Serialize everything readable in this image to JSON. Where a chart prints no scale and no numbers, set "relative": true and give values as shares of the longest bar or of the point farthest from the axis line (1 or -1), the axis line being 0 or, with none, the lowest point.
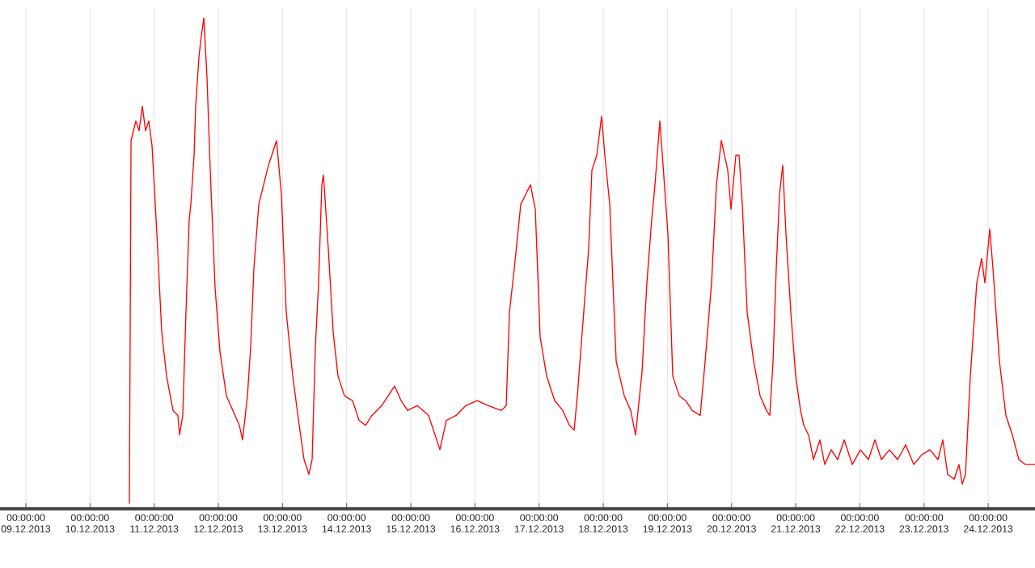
{
  "chart_data": {
    "type": "line",
    "relative": true,
    "grid": "x",
    "xlim": [
      "2013-12-08T14:19",
      "2013-12-24T17:31"
    ],
    "xticks": [
      {
        "value": "2013-12-09T00:00",
        "label": "00:00:00 09.12.2013"
      },
      {
        "value": "2013-12-10T00:00",
        "label": "00:00:00 10.12.2013"
      },
      {
        "value": "2013-12-11T00:00",
        "label": "00:00:00 11.12.2013"
      },
      {
        "value": "2013-12-12T00:00",
        "label": "00:00:00 12.12.2013"
      },
      {
        "value": "2013-12-13T00:00",
        "label": "00:00:00 13.12.2013"
      },
      {
        "value": "2013-12-14T00:00",
        "label": "00:00:00 14.12.2013"
      },
      {
        "value": "2013-12-15T00:00",
        "label": "00:00:00 15.12.2013"
      },
      {
        "value": "2013-12-16T00:00",
        "label": "00:00:00 16.12.2013"
      },
      {
        "value": "2013-12-17T00:00",
        "label": "00:00:00 17.12.2013"
      },
      {
        "value": "2013-12-18T00:00",
        "label": "00:00:00 18.12.2013"
      },
      {
        "value": "2013-12-19T00:00",
        "label": "00:00:00 19.12.2013"
      },
      {
        "value": "2013-12-20T00:00",
        "label": "00:00:00 20.12.2013"
      },
      {
        "value": "2013-12-21T00:00",
        "label": "00:00:00 21.12.2013"
      },
      {
        "value": "2013-12-22T00:00",
        "label": "00:00:00 22.12.2013"
      },
      {
        "value": "2013-12-23T00:00",
        "label": "00:00:00 23.12.2013"
      },
      {
        "value": "2013-12-24T00:00",
        "label": "00:00:00 24.12.2013"
      }
    ],
    "series": [
      {
        "color": "#ff0000",
        "line_style": "solid",
        "x": [
          "2013-12-10T14:43",
          "2013-12-10T15:20",
          "2013-12-10T17:08",
          "2013-12-10T18:21",
          "2013-12-10T19:34",
          "2013-12-10T20:46",
          "2013-12-10T21:59",
          "2013-12-10T23:11",
          "2013-12-11T01:00",
          "2013-12-11T02:49",
          "2013-12-11T04:38",
          "2013-12-11T07:03",
          "2013-12-11T08:52",
          "2013-12-11T09:29",
          "2013-12-11T10:41",
          "2013-12-11T11:53",
          "2013-12-11T13:06",
          "2013-12-11T13:42",
          "2013-12-11T14:55",
          "2013-12-11T15:31",
          "2013-12-11T16:44",
          "2013-12-11T17:20",
          "2013-12-11T18:33",
          "2013-12-11T19:45",
          "2013-12-11T20:58",
          "2013-12-11T22:47",
          "2013-12-12T00:36",
          "2013-12-12T03:01",
          "2013-12-12T05:26",
          "2013-12-12T07:51",
          "2013-12-12T09:04",
          "2013-12-12T10:53",
          "2013-12-12T12:06",
          "2013-12-12T13:18",
          "2013-12-12T15:07",
          "2013-12-12T16:56",
          "2013-12-12T18:45",
          "2013-12-12T19:58",
          "2013-12-12T21:47",
          "2013-12-12T23:35",
          "2013-12-13T01:24",
          "2013-12-13T03:50",
          "2013-12-13T06:15",
          "2013-12-13T08:04",
          "2013-12-13T09:53",
          "2013-12-13T11:05",
          "2013-12-13T12:18",
          "2013-12-13T13:30",
          "2013-12-13T14:43",
          "2013-12-13T15:19",
          "2013-12-13T17:08",
          "2013-12-13T18:57",
          "2013-12-13T20:46",
          "2013-12-13T23:11",
          "2013-12-14T02:13",
          "2013-12-14T04:38",
          "2013-12-14T07:03",
          "2013-12-14T09:28",
          "2013-12-14T13:06",
          "2013-12-14T15:31",
          "2013-12-14T17:56",
          "2013-12-14T20:22",
          "2013-12-14T22:47",
          "2013-12-15T02:25",
          "2013-12-15T06:39",
          "2013-12-15T10:53",
          "2013-12-15T13:18",
          "2013-12-15T16:56",
          "2013-12-15T20:34",
          "2013-12-16T00:48",
          "2013-12-16T05:02",
          "2013-12-16T09:52",
          "2013-12-16T11:41",
          "2013-12-16T12:54",
          "2013-12-16T14:43",
          "2013-12-16T17:08",
          "2013-12-16T18:57",
          "2013-12-16T20:46",
          "2013-12-16T22:35",
          "2013-12-17T00:23",
          "2013-12-17T02:49",
          "2013-12-17T05:50",
          "2013-12-17T08:52",
          "2013-12-17T11:17",
          "2013-12-17T13:06",
          "2013-12-17T14:18",
          "2013-12-17T16:07",
          "2013-12-17T18:32",
          "2013-12-17T19:45",
          "2013-12-17T21:34",
          "2013-12-17T23:23",
          "2013-12-18T00:35",
          "2013-12-18T02:25",
          "2013-12-18T04:50",
          "2013-12-18T07:51",
          "2013-12-18T10:16",
          "2013-12-18T12:05",
          "2013-12-18T14:31",
          "2013-12-18T16:19",
          "2013-12-18T18:08",
          "2013-12-18T19:21",
          "2013-12-18T21:10",
          "2013-12-18T22:22",
          "2013-12-19T00:11",
          "2013-12-19T02:00",
          "2013-12-19T04:25",
          "2013-12-19T06:50",
          "2013-12-19T09:16",
          "2013-12-19T12:17",
          "2013-12-19T14:06",
          "2013-12-19T16:31",
          "2013-12-19T18:20",
          "2013-12-19T20:09",
          "2013-12-19T22:34",
          "2013-12-19T23:47",
          "2013-12-20T01:36",
          "2013-12-20T02:48",
          "2013-12-20T04:01",
          "2013-12-20T05:50",
          "2013-12-20T08:15",
          "2013-12-20T10:40",
          "2013-12-20T13:05",
          "2013-12-20T14:18",
          "2013-12-20T15:31",
          "2013-12-20T16:43",
          "2013-12-20T17:56",
          "2013-12-20T19:08",
          "2013-12-20T20:21",
          "2013-12-20T22:10",
          "2013-12-20T23:59",
          "2013-12-21T01:48",
          "2013-12-21T03:00",
          "2013-12-21T04:49",
          "2013-12-21T06:38",
          "2013-12-21T09:03",
          "2013-12-21T10:52",
          "2013-12-21T13:17",
          "2013-12-21T15:43",
          "2013-12-21T18:08",
          "2013-12-21T21:09",
          "2013-12-22T00:11",
          "2013-12-22T03:12",
          "2013-12-22T05:38",
          "2013-12-22T08:03",
          "2013-12-22T11:04",
          "2013-12-22T14:06",
          "2013-12-22T17:07",
          "2013-12-22T20:09",
          "2013-12-22T23:10",
          "2013-12-23T02:12",
          "2013-12-23T05:13",
          "2013-12-23T07:02",
          "2013-12-23T08:51",
          "2013-12-23T11:16",
          "2013-12-23T13:05",
          "2013-12-23T14:18",
          "2013-12-23T15:30",
          "2013-12-23T17:19",
          "2013-12-23T19:44",
          "2013-12-23T21:33",
          "2013-12-23T22:46",
          "2013-12-24T00:35",
          "2013-12-24T01:47",
          "2013-12-24T04:13",
          "2013-12-24T06:38",
          "2013-12-24T09:03",
          "2013-12-24T11:28",
          "2013-12-24T13:53",
          "2013-12-24T17:31"
        ],
        "values": [
          0.01,
          0.75,
          0.79,
          0.77,
          0.82,
          0.77,
          0.79,
          0.74,
          0.56,
          0.36,
          0.27,
          0.2,
          0.19,
          0.15,
          0.19,
          0.4,
          0.59,
          0.62,
          0.72,
          0.82,
          0.92,
          0.95,
          1.0,
          0.88,
          0.69,
          0.45,
          0.32,
          0.23,
          0.2,
          0.17,
          0.14,
          0.23,
          0.33,
          0.49,
          0.62,
          0.66,
          0.7,
          0.72,
          0.75,
          0.64,
          0.4,
          0.27,
          0.17,
          0.1,
          0.07,
          0.1,
          0.33,
          0.46,
          0.66,
          0.68,
          0.53,
          0.36,
          0.27,
          0.23,
          0.22,
          0.18,
          0.17,
          0.19,
          0.21,
          0.23,
          0.25,
          0.22,
          0.2,
          0.21,
          0.19,
          0.12,
          0.18,
          0.19,
          0.21,
          0.22,
          0.21,
          0.2,
          0.21,
          0.4,
          0.49,
          0.62,
          0.64,
          0.66,
          0.61,
          0.35,
          0.27,
          0.22,
          0.2,
          0.17,
          0.16,
          0.23,
          0.36,
          0.53,
          0.69,
          0.72,
          0.8,
          0.72,
          0.62,
          0.3,
          0.23,
          0.2,
          0.15,
          0.28,
          0.46,
          0.59,
          0.66,
          0.79,
          0.7,
          0.56,
          0.27,
          0.23,
          0.22,
          0.2,
          0.19,
          0.3,
          0.46,
          0.66,
          0.75,
          0.69,
          0.61,
          0.72,
          0.72,
          0.62,
          0.4,
          0.3,
          0.23,
          0.2,
          0.19,
          0.3,
          0.49,
          0.64,
          0.7,
          0.56,
          0.4,
          0.27,
          0.2,
          0.17,
          0.15,
          0.1,
          0.14,
          0.09,
          0.12,
          0.1,
          0.14,
          0.09,
          0.12,
          0.1,
          0.14,
          0.1,
          0.12,
          0.1,
          0.13,
          0.09,
          0.11,
          0.12,
          0.1,
          0.14,
          0.07,
          0.06,
          0.09,
          0.05,
          0.07,
          0.27,
          0.46,
          0.51,
          0.46,
          0.57,
          0.49,
          0.3,
          0.19,
          0.15,
          0.1,
          0.09,
          0.09
        ]
      }
    ]
  }
}
